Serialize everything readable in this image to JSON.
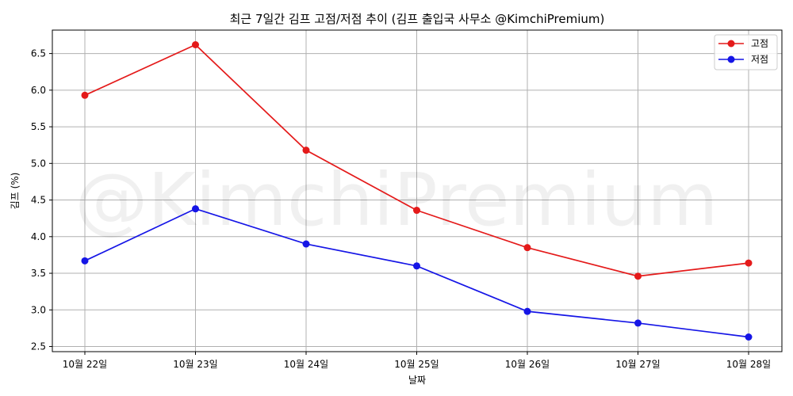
{
  "chart_data": {
    "type": "line",
    "title": "최근 7일간 김프 고점/저점 추이 (김프 출입국 사무소 @KimchiPremium)",
    "xlabel": "날짜",
    "ylabel": "김프 (%)",
    "categories": [
      "10월 22일",
      "10월 23일",
      "10월 24일",
      "10월 25일",
      "10월 26일",
      "10월 27일",
      "10월 28일"
    ],
    "series": [
      {
        "name": "고점",
        "color": "#e41a1a",
        "values": [
          5.93,
          6.62,
          5.18,
          4.36,
          3.85,
          3.46,
          3.64
        ]
      },
      {
        "name": "저점",
        "color": "#1515e6",
        "values": [
          3.67,
          4.38,
          3.9,
          3.6,
          2.98,
          2.82,
          2.63
        ]
      }
    ],
    "ylim": [
      2.43,
      6.82
    ],
    "yticks": [
      2.5,
      3.0,
      3.5,
      4.0,
      4.5,
      5.0,
      5.5,
      6.0,
      6.5
    ],
    "ytick_labels": [
      "2.5",
      "3.0",
      "3.5",
      "4.0",
      "4.5",
      "5.0",
      "5.5",
      "6.0",
      "6.5"
    ],
    "grid": true,
    "legend_position": "top-right",
    "watermark": "@KimchiPremium"
  }
}
